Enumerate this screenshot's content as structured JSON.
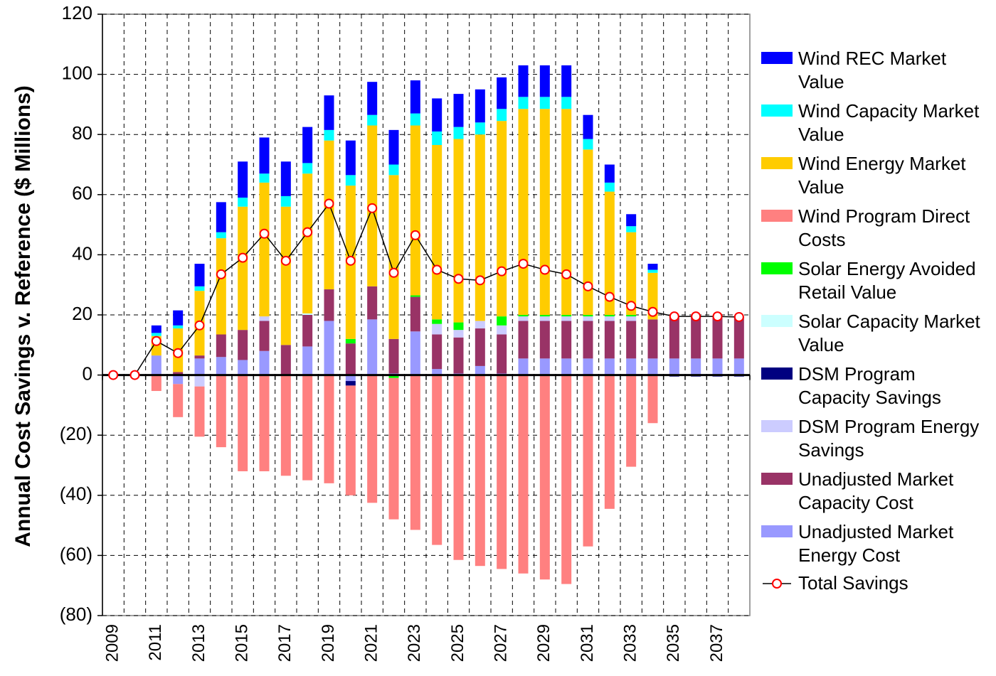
{
  "chart_data": {
    "type": "bar",
    "stacked": true,
    "y_label": "Annual Cost Savings v. Reference ($ Millions)",
    "categories": [
      "2009",
      null,
      "2011",
      null,
      "2013",
      null,
      "2015",
      null,
      "2017",
      null,
      "2019",
      null,
      "2021",
      null,
      "2023",
      null,
      "2025",
      null,
      "2027",
      null,
      "2029",
      null,
      "2031",
      null,
      "2033",
      null,
      "2035",
      null,
      "2037",
      null
    ],
    "ylim": [
      -80,
      120
    ],
    "yticks": [
      {
        "value": -80,
        "label": "(80)"
      },
      {
        "value": -60,
        "label": "(60)"
      },
      {
        "value": -40,
        "label": "(40)"
      },
      {
        "value": -20,
        "label": "(20)"
      },
      0,
      20,
      40,
      60,
      80,
      100,
      120
    ],
    "grid": true,
    "legend": "right",
    "series": [
      {
        "name": "Unadjusted Market Energy Cost",
        "color": "#9999ff",
        "values": [
          0,
          0,
          6.5,
          -3,
          5.5,
          6,
          5,
          8,
          0,
          9.5,
          18,
          -2,
          18.5,
          0.5,
          14.5,
          2,
          0.5,
          3,
          0.5,
          5.5,
          5.5,
          5.5,
          5.5,
          5.5,
          5.5,
          5.5,
          5.5,
          5.5,
          5.5,
          5.5
        ]
      },
      {
        "name": "Unadjusted Market Capacity Cost",
        "color": "#993366",
        "values": [
          0,
          0,
          0,
          1,
          1,
          7.5,
          10,
          10,
          10,
          10.5,
          10.5,
          10.5,
          11,
          11.5,
          11.5,
          11.5,
          12,
          12.5,
          13,
          12.5,
          12.5,
          12.5,
          12.5,
          12.5,
          12.5,
          13,
          14,
          14,
          14,
          14
        ]
      },
      {
        "name": "DSM Program Energy Savings",
        "color": "#ccccff",
        "values": [
          0,
          0,
          0,
          0,
          -3.8,
          0,
          0,
          1.5,
          0,
          0,
          0,
          0,
          0,
          0,
          0,
          3.5,
          2.5,
          2.5,
          3,
          1.5,
          1.5,
          1.5,
          1.5,
          1.5,
          1.5,
          0,
          0,
          0,
          0,
          0
        ]
      },
      {
        "name": "DSM Program Capacity Savings",
        "color": "#000080",
        "values": [
          0,
          0,
          0,
          0,
          0,
          0,
          0,
          0,
          0,
          0,
          0,
          -1.5,
          0,
          0,
          0,
          0,
          0,
          0,
          0,
          0,
          0,
          0,
          0,
          0,
          0,
          0,
          -0.5,
          -0.5,
          -0.5,
          -0.5
        ]
      },
      {
        "name": "Solar Capacity Market Value",
        "color": "#ccffff",
        "values": [
          0,
          0,
          0,
          0,
          0,
          0,
          0,
          0,
          0,
          0.5,
          0,
          0,
          0,
          0,
          0,
          0,
          0,
          0,
          0,
          0,
          0,
          0,
          0,
          0,
          0,
          0,
          0,
          0,
          0,
          0
        ]
      },
      {
        "name": "Solar Energy Avoided Retail Value",
        "color": "#00ff00",
        "values": [
          0,
          0,
          0,
          0,
          0,
          0,
          0,
          0,
          0,
          0,
          0,
          1.5,
          0,
          -1,
          0.5,
          1.5,
          2.5,
          0,
          3,
          0.5,
          0.5,
          0.5,
          0.5,
          0.5,
          0.5,
          0,
          0,
          0,
          0,
          0
        ]
      },
      {
        "name": "Wind Program Direct Costs",
        "color": "#ff8080",
        "values": [
          0,
          0,
          -5.3,
          -11,
          -16.7,
          -24,
          -32,
          -32,
          -33.5,
          -35,
          -36,
          -36.5,
          -42.5,
          -47,
          -51.5,
          -56.5,
          -61.5,
          -63.5,
          -64.5,
          -66,
          -68,
          -69.5,
          -57,
          -44.5,
          -30.5,
          -16,
          0,
          0,
          0,
          0
        ]
      },
      {
        "name": "Wind Energy Market Value",
        "color": "#ffcc00",
        "values": [
          0,
          0,
          6.5,
          14.5,
          21.5,
          32,
          41,
          44.5,
          46,
          46.5,
          49.5,
          51,
          53.5,
          54.5,
          56.5,
          58,
          61,
          62,
          65,
          68.5,
          68.5,
          68.5,
          55,
          41,
          27.5,
          15.5,
          0,
          0,
          0,
          0
        ]
      },
      {
        "name": "Wind Capacity Market Value",
        "color": "#00ffff",
        "values": [
          0,
          0,
          1,
          1,
          1.5,
          2,
          3,
          3,
          3.5,
          3.5,
          3.5,
          3.5,
          3.5,
          3.5,
          4,
          4.5,
          4,
          4,
          4,
          4,
          4,
          4,
          3.5,
          3,
          2,
          1,
          0,
          0,
          0,
          0
        ]
      },
      {
        "name": "Wind REC Market Value",
        "color": "#0000ff",
        "values": [
          0,
          0,
          2.5,
          5,
          7.5,
          10,
          12,
          12,
          11.5,
          12,
          11.5,
          11.5,
          11,
          11.5,
          11,
          11,
          11,
          11,
          10.5,
          10.5,
          10.5,
          10.5,
          8,
          6,
          4,
          2,
          0,
          0,
          0,
          0
        ]
      }
    ],
    "line": {
      "name": "Total Savings",
      "color": "#000000",
      "marker_color": "#ff0000",
      "values": [
        0,
        0,
        11.3,
        7.3,
        16.5,
        33.5,
        39,
        47,
        38,
        47.5,
        57,
        38,
        55.5,
        34,
        46.5,
        35,
        32,
        31.5,
        34.5,
        37,
        35,
        33.5,
        29.5,
        26,
        23,
        21,
        19.5,
        19.5,
        19.5,
        19.3
      ]
    }
  }
}
